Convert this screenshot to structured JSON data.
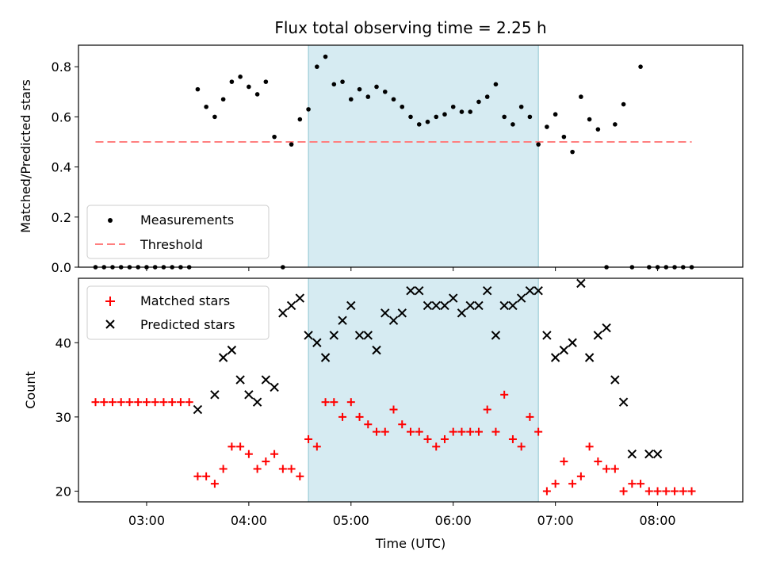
{
  "chart_data": [
    {
      "type": "scatter",
      "title": "Flux total observing time = 2.25 h",
      "xlabel": "",
      "ylabel": "Matched/Predicted stars",
      "ylim": [
        0,
        0.886
      ],
      "yticks": [
        "0.0",
        "0.2",
        "0.4",
        "0.6",
        "0.8"
      ],
      "ytick_values": [
        0,
        0.2,
        0.4,
        0.6,
        0.8
      ],
      "legend_position": "lower-left",
      "shaded_region": {
        "start": "04:35",
        "end": "06:50",
        "color": "#add8e6"
      },
      "threshold": {
        "name": "Threshold",
        "value": 0.5,
        "x_start": "02:30",
        "x_end": "08:20",
        "color": "#ff7f7f"
      },
      "series": [
        {
          "name": "Measurements",
          "marker": "dot",
          "color": "#000000",
          "x": [
            "02:30",
            "02:35",
            "02:40",
            "02:45",
            "02:50",
            "02:55",
            "03:00",
            "03:05",
            "03:10",
            "03:15",
            "03:20",
            "03:25",
            "03:30",
            "03:35",
            "03:40",
            "03:45",
            "03:50",
            "03:55",
            "04:00",
            "04:05",
            "04:10",
            "04:15",
            "04:20",
            "04:25",
            "04:30",
            "04:35",
            "04:40",
            "04:45",
            "04:50",
            "04:55",
            "05:00",
            "05:05",
            "05:10",
            "05:15",
            "05:20",
            "05:25",
            "05:30",
            "05:35",
            "05:40",
            "05:45",
            "05:50",
            "05:55",
            "06:00",
            "06:05",
            "06:10",
            "06:15",
            "06:20",
            "06:25",
            "06:30",
            "06:35",
            "06:40",
            "06:45",
            "06:50",
            "06:55",
            "07:00",
            "07:05",
            "07:10",
            "07:15",
            "07:20",
            "07:25",
            "07:30",
            "07:35",
            "07:40",
            "07:45",
            "07:50",
            "07:55",
            "08:00",
            "08:05",
            "08:10",
            "08:15",
            "08:20"
          ],
          "y": [
            0,
            0,
            0,
            0,
            0,
            0,
            0,
            0,
            0,
            0,
            0,
            0,
            0.71,
            0.64,
            0.6,
            0.67,
            0.74,
            0.76,
            0.72,
            0.69,
            0.74,
            0.52,
            0,
            0.49,
            0.59,
            0.63,
            0.8,
            0.84,
            0.73,
            0.74,
            0.67,
            0.71,
            0.68,
            0.72,
            0.7,
            0.67,
            0.64,
            0.6,
            0.57,
            0.58,
            0.6,
            0.61,
            0.64,
            0.62,
            0.62,
            0.66,
            0.68,
            0.73,
            0.6,
            0.57,
            0.64,
            0.6,
            0.49,
            0.56,
            0.61,
            0.52,
            0.46,
            0.68,
            0.59,
            0.55,
            0,
            0.57,
            0.65,
            0,
            0.8,
            0,
            0,
            0,
            0,
            0,
            0
          ]
        }
      ]
    },
    {
      "type": "scatter",
      "title": "",
      "xlabel": "Time (UTC)",
      "ylabel": "Count",
      "ylim": [
        18.56,
        48.68
      ],
      "yticks": [
        "20",
        "30",
        "40"
      ],
      "ytick_values": [
        20,
        30,
        40
      ],
      "xticks": [
        "03:00",
        "04:00",
        "05:00",
        "06:00",
        "07:00",
        "08:00"
      ],
      "xlim": [
        "02:20",
        "08:50"
      ],
      "legend_position": "upper-left",
      "shaded_region": {
        "start": "04:35",
        "end": "06:50",
        "color": "#add8e6"
      },
      "series": [
        {
          "name": "Matched stars",
          "marker": "plus",
          "color": "#ff0000",
          "x": [
            "02:30",
            "02:35",
            "02:40",
            "02:45",
            "02:50",
            "02:55",
            "03:00",
            "03:05",
            "03:10",
            "03:15",
            "03:20",
            "03:25",
            "03:30",
            "03:35",
            "03:40",
            "03:45",
            "03:50",
            "03:55",
            "04:00",
            "04:05",
            "04:10",
            "04:15",
            "04:20",
            "04:25",
            "04:30",
            "04:35",
            "04:40",
            "04:45",
            "04:50",
            "04:55",
            "05:00",
            "05:05",
            "05:10",
            "05:15",
            "05:20",
            "05:25",
            "05:30",
            "05:35",
            "05:40",
            "05:45",
            "05:50",
            "05:55",
            "06:00",
            "06:05",
            "06:10",
            "06:15",
            "06:20",
            "06:25",
            "06:30",
            "06:35",
            "06:40",
            "06:45",
            "06:50",
            "06:55",
            "07:00",
            "07:05",
            "07:10",
            "07:15",
            "07:20",
            "07:25",
            "07:30",
            "07:35",
            "07:40",
            "07:45",
            "07:50",
            "07:55",
            "08:00",
            "08:05",
            "08:10",
            "08:15",
            "08:20"
          ],
          "y": [
            32,
            32,
            32,
            32,
            32,
            32,
            32,
            32,
            32,
            32,
            32,
            32,
            22,
            22,
            21,
            23,
            26,
            26,
            25,
            23,
            24,
            25,
            23,
            23,
            22,
            27,
            26,
            32,
            32,
            30,
            32,
            30,
            29,
            28,
            28,
            31,
            29,
            28,
            28,
            27,
            26,
            27,
            28,
            28,
            28,
            28,
            31,
            28,
            33,
            27,
            26,
            30,
            28,
            20,
            21,
            24,
            21,
            22,
            26,
            24,
            23,
            23,
            20,
            21,
            21,
            20,
            20,
            20,
            20,
            20,
            20
          ]
        },
        {
          "name": "Predicted stars",
          "marker": "x",
          "color": "#000000",
          "x": [
            "03:30",
            "03:40",
            "03:45",
            "03:50",
            "03:55",
            "04:00",
            "04:05",
            "04:10",
            "04:15",
            "04:20",
            "04:25",
            "04:30",
            "04:35",
            "04:40",
            "04:45",
            "04:50",
            "04:55",
            "05:00",
            "05:05",
            "05:10",
            "05:15",
            "05:20",
            "05:25",
            "05:30",
            "05:35",
            "05:40",
            "05:45",
            "05:50",
            "05:55",
            "06:00",
            "06:05",
            "06:10",
            "06:15",
            "06:20",
            "06:25",
            "06:30",
            "06:35",
            "06:40",
            "06:45",
            "06:50",
            "06:55",
            "07:00",
            "07:05",
            "07:10",
            "07:15",
            "07:20",
            "07:25",
            "07:30",
            "07:35",
            "07:40",
            "07:45",
            "07:55",
            "08:00"
          ],
          "y": [
            31,
            33,
            38,
            39,
            35,
            33,
            32,
            35,
            34,
            44,
            45,
            46,
            41,
            40,
            38,
            41,
            43,
            45,
            41,
            41,
            39,
            44,
            43,
            44,
            47,
            47,
            45,
            45,
            45,
            46,
            44,
            45,
            45,
            47,
            41,
            45,
            45,
            46,
            47,
            47,
            41,
            38,
            39,
            40,
            48,
            38,
            41,
            42,
            35,
            32,
            25,
            25,
            25
          ]
        }
      ]
    }
  ]
}
